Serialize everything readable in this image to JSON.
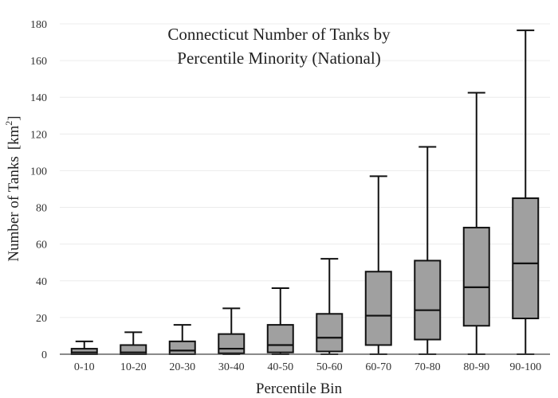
{
  "chart_data": {
    "type": "box",
    "title_lines": [
      "Connecticut Number of Tanks by",
      "Percentile Minority (National)"
    ],
    "xlabel": "Percentile Bin",
    "ylabel": "Number of Tanks",
    "ylabel_unit_base": "[km",
    "ylabel_unit_exp": "2",
    "ylabel_unit_close": "]",
    "ylim": [
      0,
      180
    ],
    "yticks": [
      0,
      20,
      40,
      60,
      80,
      100,
      120,
      140,
      160,
      180
    ],
    "grid": true,
    "box_color": "#a0a0a0",
    "line_color": "#111111",
    "categories": [
      "0-10",
      "10-20",
      "20-30",
      "30-40",
      "40-50",
      "50-60",
      "60-70",
      "70-80",
      "80-90",
      "90-100"
    ],
    "boxes": [
      {
        "min": 0,
        "q1": 0,
        "median": 1,
        "q3": 3,
        "max": 7
      },
      {
        "min": 0,
        "q1": 0,
        "median": 1,
        "q3": 5,
        "max": 12
      },
      {
        "min": 0,
        "q1": 0,
        "median": 2,
        "q3": 7,
        "max": 16
      },
      {
        "min": 0,
        "q1": 0.5,
        "median": 3,
        "q3": 11,
        "max": 25
      },
      {
        "min": 0,
        "q1": 1,
        "median": 5,
        "q3": 16,
        "max": 36
      },
      {
        "min": 0,
        "q1": 1.5,
        "median": 9,
        "q3": 22,
        "max": 52
      },
      {
        "min": 0,
        "q1": 5,
        "median": 21,
        "q3": 45,
        "max": 97
      },
      {
        "min": 0,
        "q1": 8,
        "median": 24,
        "q3": 51,
        "max": 113
      },
      {
        "min": 0,
        "q1": 15.5,
        "median": 36.5,
        "q3": 69,
        "max": 142.5
      },
      {
        "min": 0,
        "q1": 19.5,
        "median": 49.5,
        "q3": 85,
        "max": 176.5
      }
    ]
  }
}
